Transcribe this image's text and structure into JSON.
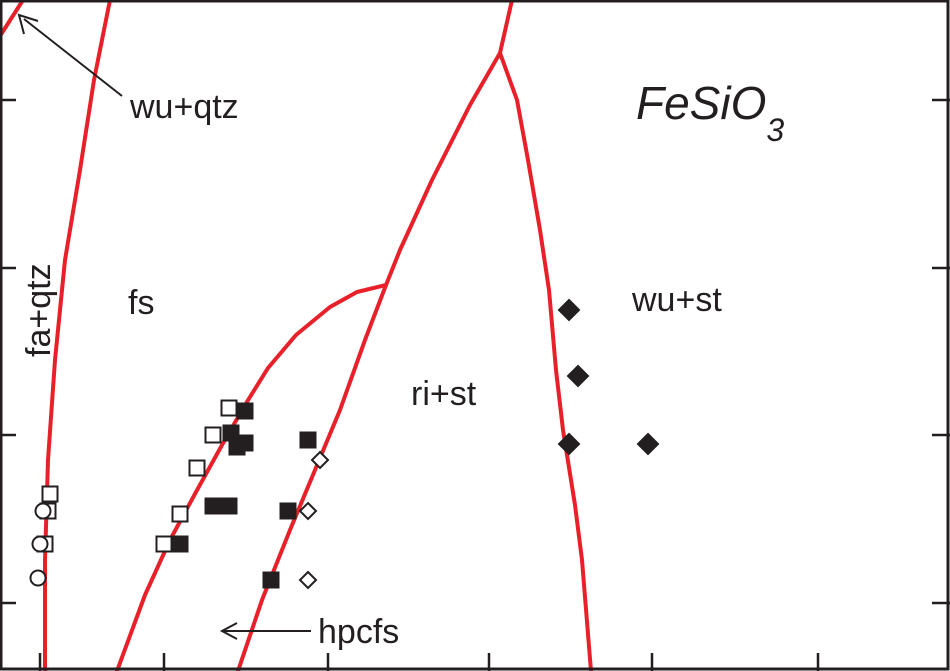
{
  "chart_data": {
    "type": "scatter",
    "title": "",
    "compound": {
      "text": "FeSiO",
      "subscript": "3"
    },
    "xlabel": "",
    "ylabel": "",
    "grid": false,
    "colors": {
      "boundary": "#e8202a",
      "ink": "#231f20",
      "frame": "#231f20"
    },
    "phase_labels": [
      {
        "id": "wu-qtz",
        "text": "wu+qtz"
      },
      {
        "id": "fa-qtz",
        "text": "fa+qtz"
      },
      {
        "id": "fs",
        "text": "fs"
      },
      {
        "id": "wu-st",
        "text": "wu+st"
      },
      {
        "id": "ri-st",
        "text": "ri+st"
      },
      {
        "id": "hpcfs",
        "text": "hpcfs"
      }
    ],
    "series": [
      {
        "marker": "square-open",
        "points": [
          [
            229,
            408
          ],
          [
            213,
            435
          ],
          [
            197,
            468
          ],
          [
            180,
            514
          ],
          [
            164,
            544
          ],
          [
            50,
            494
          ],
          [
            48,
            511
          ],
          [
            45,
            544
          ]
        ]
      },
      {
        "marker": "square-filled",
        "points": [
          [
            245,
            411
          ],
          [
            231,
            433
          ],
          [
            245,
            443
          ],
          [
            237,
            447
          ],
          [
            213,
            506
          ],
          [
            229,
            506
          ],
          [
            180,
            544
          ],
          [
            308,
            440
          ],
          [
            288,
            511
          ],
          [
            271,
            580
          ]
        ]
      },
      {
        "marker": "circle-open",
        "points": [
          [
            43,
            511
          ],
          [
            40,
            544
          ],
          [
            38,
            578
          ]
        ]
      },
      {
        "marker": "diamond-open",
        "points": [
          [
            320,
            460
          ],
          [
            308,
            511
          ],
          [
            308,
            580
          ]
        ]
      },
      {
        "marker": "diamond-filled",
        "points": [
          [
            569,
            310
          ],
          [
            578,
            376
          ],
          [
            569,
            444
          ],
          [
            648,
            444
          ]
        ]
      }
    ]
  }
}
